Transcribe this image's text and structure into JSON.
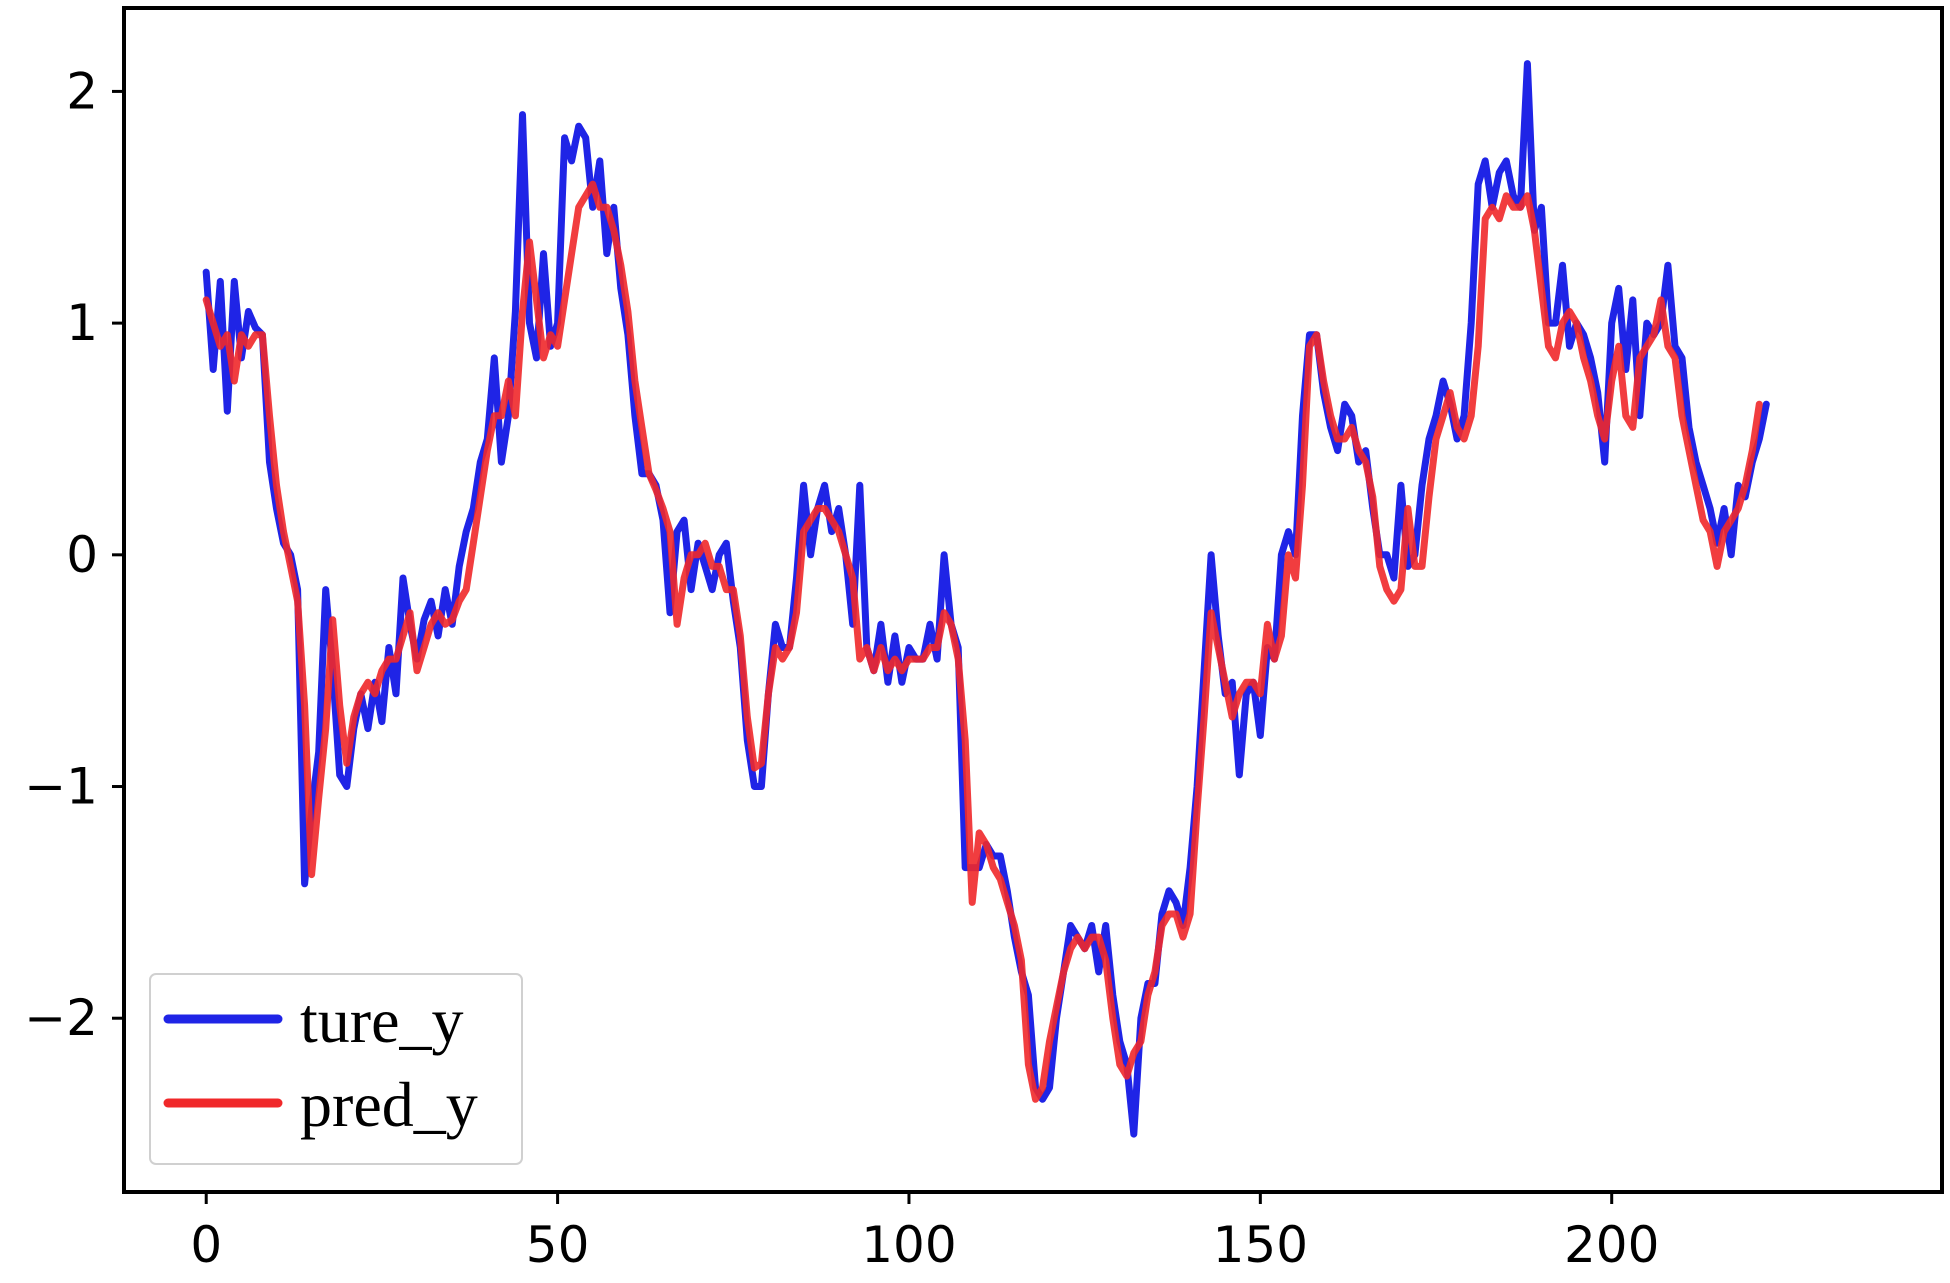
{
  "chart_data": {
    "type": "line",
    "xlim": [
      -11.7,
      247
    ],
    "ylim": [
      -2.75,
      2.36
    ],
    "xticks": [
      0,
      50,
      100,
      150,
      200
    ],
    "yticks": [
      2,
      1,
      0,
      -1,
      -2
    ],
    "xtick_labels": [
      "0",
      "50",
      "100",
      "150",
      "200"
    ],
    "ytick_labels": [
      "2",
      "1",
      "0",
      "−1",
      "−2"
    ],
    "legend": {
      "position": "lower-left"
    },
    "grid": false,
    "series": [
      {
        "name": "ture_y",
        "color": "#1f24e6",
        "values": [
          1.22,
          0.8,
          1.18,
          0.62,
          1.18,
          0.85,
          1.05,
          0.98,
          0.95,
          0.4,
          0.2,
          0.05,
          0.0,
          -0.15,
          -1.42,
          -1.1,
          -0.85,
          -0.15,
          -0.5,
          -0.95,
          -1.0,
          -0.75,
          -0.6,
          -0.75,
          -0.55,
          -0.72,
          -0.4,
          -0.6,
          -0.1,
          -0.3,
          -0.45,
          -0.28,
          -0.2,
          -0.35,
          -0.15,
          -0.3,
          -0.05,
          0.1,
          0.2,
          0.4,
          0.5,
          0.85,
          0.4,
          0.6,
          1.05,
          1.9,
          1.0,
          0.85,
          1.3,
          0.9,
          1.0,
          1.8,
          1.7,
          1.85,
          1.8,
          1.5,
          1.7,
          1.3,
          1.5,
          1.15,
          0.95,
          0.6,
          0.35,
          0.35,
          0.3,
          0.15,
          -0.25,
          0.1,
          0.15,
          -0.15,
          0.05,
          -0.05,
          -0.15,
          0.0,
          0.05,
          -0.2,
          -0.4,
          -0.8,
          -1.0,
          -1.0,
          -0.6,
          -0.3,
          -0.4,
          -0.4,
          -0.1,
          0.3,
          0.0,
          0.2,
          0.3,
          0.1,
          0.2,
          0.0,
          -0.3,
          0.3,
          -0.4,
          -0.5,
          -0.3,
          -0.55,
          -0.35,
          -0.55,
          -0.4,
          -0.45,
          -0.45,
          -0.3,
          -0.45,
          0.0,
          -0.3,
          -0.4,
          -1.35,
          -1.35,
          -1.35,
          -1.25,
          -1.3,
          -1.3,
          -1.45,
          -1.65,
          -1.8,
          -1.9,
          -2.3,
          -2.35,
          -2.3,
          -2.0,
          -1.8,
          -1.6,
          -1.65,
          -1.7,
          -1.6,
          -1.8,
          -1.6,
          -1.9,
          -2.1,
          -2.2,
          -2.5,
          -2.0,
          -1.85,
          -1.85,
          -1.55,
          -1.45,
          -1.5,
          -1.6,
          -1.35,
          -1.0,
          -0.5,
          0.0,
          -0.35,
          -0.6,
          -0.55,
          -0.95,
          -0.6,
          -0.55,
          -0.78,
          -0.4,
          -0.45,
          0.0,
          0.1,
          0.0,
          0.6,
          0.95,
          0.95,
          0.7,
          0.55,
          0.45,
          0.65,
          0.6,
          0.4,
          0.45,
          0.2,
          0.0,
          0.0,
          -0.1,
          0.3,
          -0.05,
          0.0,
          0.3,
          0.5,
          0.6,
          0.75,
          0.65,
          0.5,
          0.6,
          1.0,
          1.6,
          1.7,
          1.5,
          1.65,
          1.7,
          1.55,
          1.5,
          2.12,
          1.4,
          1.5,
          1.0,
          1.0,
          1.25,
          0.9,
          1.0,
          0.95,
          0.85,
          0.7,
          0.4,
          1.0,
          1.15,
          0.8,
          1.1,
          0.6,
          1.0,
          0.95,
          1.0,
          1.25,
          0.9,
          0.85,
          0.55,
          0.4,
          0.3,
          0.2,
          0.05,
          0.2,
          0.0,
          0.3,
          0.25,
          0.4,
          0.5,
          0.65
        ],
        "label": "ture_y"
      },
      {
        "name": "pred_y",
        "color": "#f0282a",
        "values": [
          1.1,
          1.0,
          0.9,
          0.95,
          0.75,
          0.95,
          0.9,
          0.95,
          0.95,
          0.6,
          0.3,
          0.1,
          -0.05,
          -0.2,
          -0.65,
          -1.38,
          -1.05,
          -0.75,
          -0.28,
          -0.65,
          -0.9,
          -0.7,
          -0.6,
          -0.55,
          -0.6,
          -0.5,
          -0.45,
          -0.45,
          -0.35,
          -0.25,
          -0.5,
          -0.4,
          -0.3,
          -0.25,
          -0.3,
          -0.28,
          -0.2,
          -0.15,
          0.05,
          0.25,
          0.45,
          0.6,
          0.6,
          0.75,
          0.6,
          1.05,
          1.35,
          1.1,
          0.85,
          0.95,
          0.9,
          1.1,
          1.3,
          1.5,
          1.55,
          1.6,
          1.5,
          1.5,
          1.4,
          1.25,
          1.05,
          0.75,
          0.55,
          0.35,
          0.28,
          0.2,
          0.1,
          -0.3,
          -0.1,
          0.0,
          0.0,
          0.05,
          -0.05,
          -0.05,
          -0.15,
          -0.15,
          -0.35,
          -0.7,
          -0.92,
          -0.9,
          -0.6,
          -0.4,
          -0.45,
          -0.4,
          -0.25,
          0.1,
          0.15,
          0.2,
          0.2,
          0.15,
          0.1,
          0.0,
          -0.1,
          -0.45,
          -0.4,
          -0.5,
          -0.4,
          -0.5,
          -0.45,
          -0.5,
          -0.45,
          -0.45,
          -0.45,
          -0.4,
          -0.4,
          -0.25,
          -0.3,
          -0.45,
          -0.8,
          -1.5,
          -1.2,
          -1.25,
          -1.35,
          -1.4,
          -1.5,
          -1.6,
          -1.75,
          -2.2,
          -2.35,
          -2.3,
          -2.1,
          -1.95,
          -1.8,
          -1.7,
          -1.65,
          -1.7,
          -1.65,
          -1.65,
          -1.75,
          -2.0,
          -2.2,
          -2.25,
          -2.15,
          -2.1,
          -1.9,
          -1.8,
          -1.6,
          -1.55,
          -1.55,
          -1.65,
          -1.55,
          -1.1,
          -0.7,
          -0.25,
          -0.4,
          -0.55,
          -0.7,
          -0.6,
          -0.55,
          -0.55,
          -0.6,
          -0.3,
          -0.45,
          -0.35,
          0.0,
          -0.1,
          0.3,
          0.9,
          0.95,
          0.75,
          0.6,
          0.5,
          0.5,
          0.55,
          0.45,
          0.4,
          0.25,
          -0.05,
          -0.15,
          -0.2,
          -0.15,
          0.2,
          -0.05,
          -0.05,
          0.25,
          0.5,
          0.6,
          0.7,
          0.55,
          0.5,
          0.6,
          0.9,
          1.45,
          1.5,
          1.45,
          1.55,
          1.5,
          1.5,
          1.55,
          1.4,
          1.15,
          0.9,
          0.85,
          1.0,
          1.05,
          1.0,
          0.85,
          0.75,
          0.6,
          0.5,
          0.75,
          0.9,
          0.6,
          0.55,
          0.85,
          0.9,
          0.95,
          1.1,
          0.9,
          0.85,
          0.6,
          0.45,
          0.3,
          0.15,
          0.1,
          -0.05,
          0.1,
          0.15,
          0.2,
          0.3,
          0.45,
          0.65
        ],
        "label": "pred_y"
      }
    ]
  }
}
